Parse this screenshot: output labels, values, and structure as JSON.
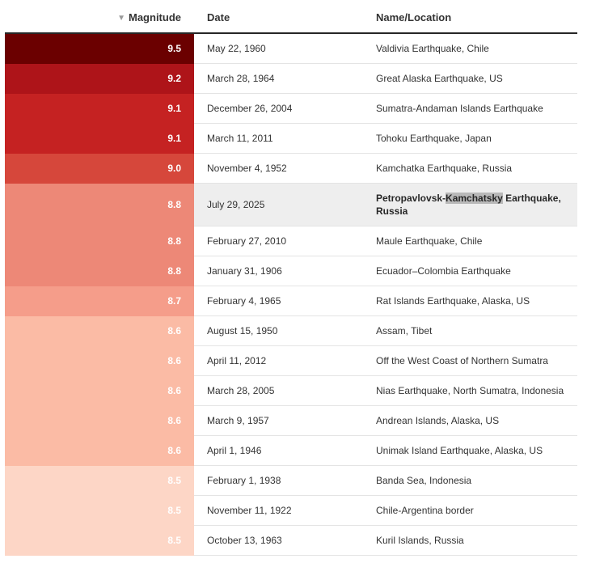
{
  "header": {
    "sort_icon": "▼",
    "magnitude": "Magnitude",
    "date": "Date",
    "name": "Name/Location"
  },
  "rows": [
    {
      "magnitude": "9.5",
      "date": "May 22, 1960",
      "name": "Valdivia Earthquake, Chile",
      "color": "#6b0000"
    },
    {
      "magnitude": "9.2",
      "date": "March 28, 1964",
      "name": "Great Alaska Earthquake, US",
      "color": "#ae1419"
    },
    {
      "magnitude": "9.1",
      "date": "December 26, 2004",
      "name": "Sumatra-Andaman Islands Earthquake",
      "color": "#c52222"
    },
    {
      "magnitude": "9.1",
      "date": "March 11, 2011",
      "name": "Tohoku Earthquake, Japan",
      "color": "#c52222"
    },
    {
      "magnitude": "9.0",
      "date": "November 4, 1952",
      "name": "Kamchatka Earthquake, Russia",
      "color": "#d6473b"
    },
    {
      "magnitude": "8.8",
      "date": "July 29, 2025",
      "name_pre": "Petropavlovsk-",
      "name_sel": "Kamchatsky",
      "name_post": " Earthquake, Russia",
      "color": "#ed8877",
      "highlight": true
    },
    {
      "magnitude": "8.8",
      "date": "February 27, 2010",
      "name": "Maule Earthquake, Chile",
      "color": "#ed8877"
    },
    {
      "magnitude": "8.8",
      "date": "January 31, 1906",
      "name": "Ecuador–Colombia Earthquake",
      "color": "#ed8877"
    },
    {
      "magnitude": "8.7",
      "date": "February 4, 1965",
      "name": "Rat Islands Earthquake, Alaska, US",
      "color": "#f59d8a"
    },
    {
      "magnitude": "8.6",
      "date": "August 15, 1950",
      "name": "Assam, Tibet",
      "color": "#fbbba5"
    },
    {
      "magnitude": "8.6",
      "date": "April 11, 2012",
      "name": "Off the West Coast of Northern Sumatra",
      "color": "#fbbba5"
    },
    {
      "magnitude": "8.6",
      "date": "March 28, 2005",
      "name": "Nias Earthquake, North Sumatra, Indonesia",
      "color": "#fbbba5"
    },
    {
      "magnitude": "8.6",
      "date": "March 9, 1957",
      "name": "Andrean Islands, Alaska, US",
      "color": "#fbbba5"
    },
    {
      "magnitude": "8.6",
      "date": "April 1, 1946",
      "name": "Unimak Island Earthquake, Alaska, US",
      "color": "#fbbba5"
    },
    {
      "magnitude": "8.5",
      "date": "February 1, 1938",
      "name": "Banda Sea, Indonesia",
      "color": "#fdd6c6"
    },
    {
      "magnitude": "8.5",
      "date": "November 11, 1922",
      "name": "Chile-Argentina border",
      "color": "#fdd6c6"
    },
    {
      "magnitude": "8.5",
      "date": "October 13, 1963",
      "name": "Kuril Islands, Russia",
      "color": "#fdd6c6"
    }
  ]
}
